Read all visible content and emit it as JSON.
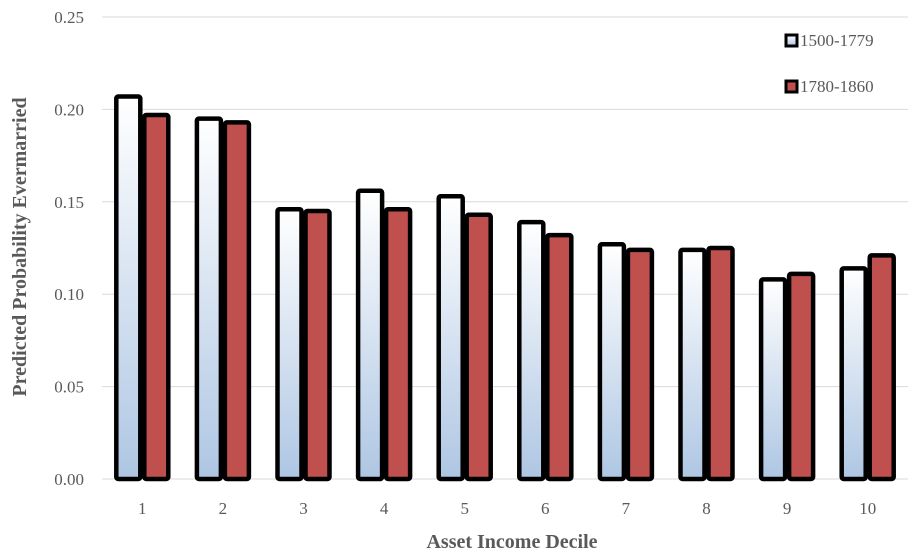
{
  "chart_data": {
    "type": "bar",
    "title": "",
    "xlabel": "Asset Income Decile",
    "ylabel": "Predicted Probability Evermarried",
    "categories": [
      "1",
      "2",
      "3",
      "4",
      "5",
      "6",
      "7",
      "8",
      "9",
      "10"
    ],
    "series": [
      {
        "name": "1500-1779",
        "values": [
          0.207,
          0.195,
          0.146,
          0.156,
          0.153,
          0.139,
          0.127,
          0.124,
          0.108,
          0.114
        ],
        "fill": "gradient-white-to-lightblue"
      },
      {
        "name": "1780-1860",
        "values": [
          0.197,
          0.193,
          0.145,
          0.146,
          0.143,
          0.132,
          0.124,
          0.125,
          0.111,
          0.121
        ],
        "color": "#c0504d"
      }
    ],
    "ylim": [
      0,
      0.25
    ],
    "yticks": [
      "0.00",
      "0.05",
      "0.10",
      "0.15",
      "0.20",
      "0.25"
    ],
    "ytick_values": [
      0,
      0.05,
      0.1,
      0.15,
      0.2,
      0.25
    ],
    "grid": true,
    "legend_position": "top-right",
    "colors": {
      "series1_top": "#ffffff",
      "series1_bottom": "#aec6e3",
      "series2": "#c0504d",
      "outline": "#000000",
      "grid": "#d9d9d9",
      "text": "#595959"
    }
  }
}
